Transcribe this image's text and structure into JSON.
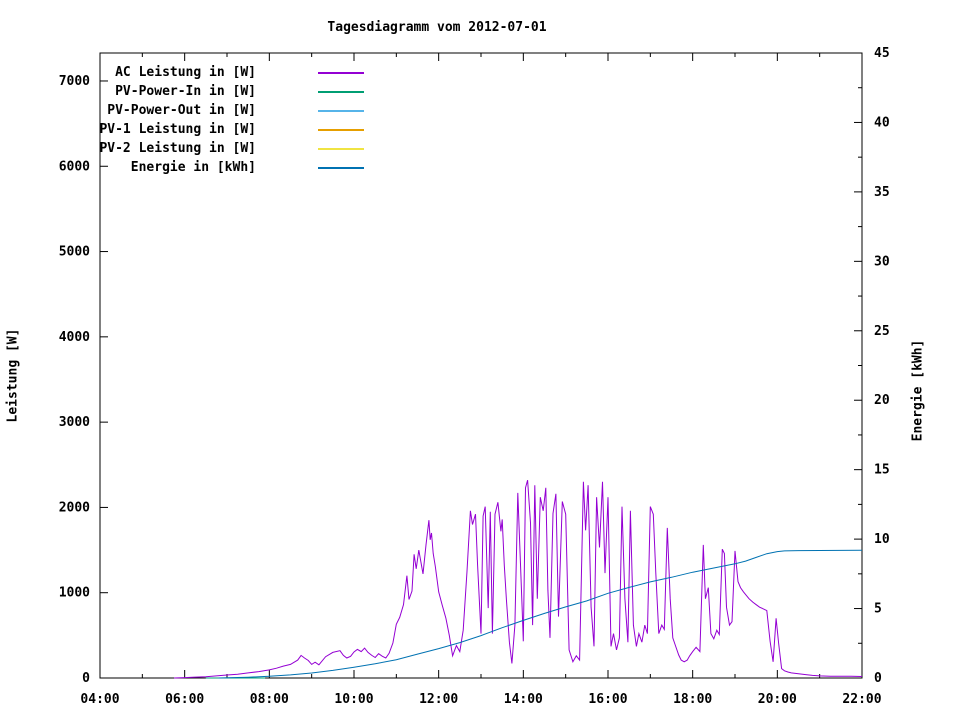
{
  "window": {
    "title": "Tagesdiagramm vom 2012-07-01"
  },
  "chart_data": {
    "type": "line",
    "title": "Tagesdiagramm vom 2012-07-01",
    "xlabel": "",
    "ylabel_left": "Leistung [W]",
    "ylabel_right": "Energie [kWh]",
    "grid": false,
    "legend_position": "top-left-inside",
    "x_axis": {
      "unit": "time",
      "start_hour": 4,
      "end_hour": 22,
      "major_tick_hours": 2,
      "minor_tick_hours": 1,
      "tick_labels": [
        "04:00",
        "06:00",
        "08:00",
        "10:00",
        "12:00",
        "14:00",
        "16:00",
        "18:00",
        "20:00",
        "22:00"
      ]
    },
    "y_left_axis": {
      "label": "Leistung [W]",
      "min": 0,
      "max": 7328,
      "major_tick": 1000,
      "tick_labels": [
        "0",
        "1000",
        "2000",
        "3000",
        "4000",
        "5000",
        "6000",
        "7000"
      ]
    },
    "y_right_axis": {
      "label": "Energie [kWh]",
      "min": 0,
      "max": 45,
      "major_tick": 5,
      "minor_tick": 2.5,
      "tick_labels": [
        "0",
        "5",
        "10",
        "15",
        "20",
        "25",
        "30",
        "35",
        "40",
        "45"
      ]
    },
    "series": [
      {
        "name": "AC Leistung in [W]",
        "color": "#9400d3",
        "axis": "left",
        "points": [
          [
            5.75,
            0
          ],
          [
            6.0,
            5
          ],
          [
            6.25,
            10
          ],
          [
            6.5,
            15
          ],
          [
            6.75,
            25
          ],
          [
            7.0,
            35
          ],
          [
            7.25,
            45
          ],
          [
            7.5,
            60
          ],
          [
            7.75,
            75
          ],
          [
            8.0,
            95
          ],
          [
            8.17,
            115
          ],
          [
            8.33,
            140
          ],
          [
            8.5,
            160
          ],
          [
            8.67,
            210
          ],
          [
            8.75,
            265
          ],
          [
            8.83,
            235
          ],
          [
            8.92,
            205
          ],
          [
            9.0,
            160
          ],
          [
            9.08,
            185
          ],
          [
            9.17,
            155
          ],
          [
            9.33,
            250
          ],
          [
            9.5,
            300
          ],
          [
            9.67,
            320
          ],
          [
            9.75,
            265
          ],
          [
            9.83,
            235
          ],
          [
            9.92,
            255
          ],
          [
            10.0,
            305
          ],
          [
            10.08,
            335
          ],
          [
            10.17,
            310
          ],
          [
            10.25,
            350
          ],
          [
            10.33,
            300
          ],
          [
            10.42,
            265
          ],
          [
            10.5,
            240
          ],
          [
            10.58,
            285
          ],
          [
            10.67,
            255
          ],
          [
            10.75,
            235
          ],
          [
            10.83,
            290
          ],
          [
            10.92,
            410
          ],
          [
            11.0,
            630
          ],
          [
            11.08,
            710
          ],
          [
            11.17,
            860
          ],
          [
            11.25,
            1200
          ],
          [
            11.3,
            920
          ],
          [
            11.37,
            1020
          ],
          [
            11.42,
            1450
          ],
          [
            11.47,
            1280
          ],
          [
            11.53,
            1500
          ],
          [
            11.58,
            1360
          ],
          [
            11.63,
            1220
          ],
          [
            11.7,
            1560
          ],
          [
            11.77,
            1850
          ],
          [
            11.8,
            1620
          ],
          [
            11.83,
            1700
          ],
          [
            11.87,
            1460
          ],
          [
            11.92,
            1310
          ],
          [
            12.0,
            1010
          ],
          [
            12.08,
            860
          ],
          [
            12.17,
            700
          ],
          [
            12.25,
            500
          ],
          [
            12.33,
            260
          ],
          [
            12.42,
            380
          ],
          [
            12.5,
            310
          ],
          [
            12.58,
            560
          ],
          [
            12.67,
            1250
          ],
          [
            12.75,
            1960
          ],
          [
            12.8,
            1800
          ],
          [
            12.87,
            1920
          ],
          [
            12.92,
            1320
          ],
          [
            13.0,
            520
          ],
          [
            13.05,
            1900
          ],
          [
            13.1,
            2010
          ],
          [
            13.17,
            820
          ],
          [
            13.22,
            1950
          ],
          [
            13.27,
            520
          ],
          [
            13.33,
            1920
          ],
          [
            13.4,
            2060
          ],
          [
            13.47,
            1720
          ],
          [
            13.5,
            1860
          ],
          [
            13.55,
            1320
          ],
          [
            13.6,
            920
          ],
          [
            13.67,
            420
          ],
          [
            13.73,
            170
          ],
          [
            13.8,
            620
          ],
          [
            13.87,
            2170
          ],
          [
            13.92,
            1520
          ],
          [
            13.97,
            830
          ],
          [
            14.0,
            430
          ],
          [
            14.05,
            2230
          ],
          [
            14.1,
            2320
          ],
          [
            14.17,
            1820
          ],
          [
            14.22,
            620
          ],
          [
            14.27,
            2260
          ],
          [
            14.33,
            930
          ],
          [
            14.4,
            2120
          ],
          [
            14.47,
            1960
          ],
          [
            14.53,
            2230
          ],
          [
            14.58,
            1030
          ],
          [
            14.63,
            470
          ],
          [
            14.7,
            1930
          ],
          [
            14.77,
            2160
          ],
          [
            14.83,
            720
          ],
          [
            14.92,
            2070
          ],
          [
            15.0,
            1920
          ],
          [
            15.08,
            330
          ],
          [
            15.17,
            190
          ],
          [
            15.25,
            260
          ],
          [
            15.33,
            210
          ],
          [
            15.42,
            2300
          ],
          [
            15.47,
            1730
          ],
          [
            15.53,
            2260
          ],
          [
            15.6,
            830
          ],
          [
            15.67,
            370
          ],
          [
            15.73,
            2120
          ],
          [
            15.8,
            1530
          ],
          [
            15.87,
            2300
          ],
          [
            15.93,
            1230
          ],
          [
            16.0,
            2120
          ],
          [
            16.07,
            370
          ],
          [
            16.13,
            520
          ],
          [
            16.2,
            330
          ],
          [
            16.27,
            470
          ],
          [
            16.33,
            2010
          ],
          [
            16.4,
            930
          ],
          [
            16.47,
            420
          ],
          [
            16.53,
            1960
          ],
          [
            16.6,
            620
          ],
          [
            16.67,
            370
          ],
          [
            16.73,
            520
          ],
          [
            16.8,
            420
          ],
          [
            16.87,
            620
          ],
          [
            16.93,
            520
          ],
          [
            17.0,
            2010
          ],
          [
            17.07,
            1920
          ],
          [
            17.13,
            1230
          ],
          [
            17.2,
            520
          ],
          [
            17.27,
            620
          ],
          [
            17.33,
            570
          ],
          [
            17.4,
            1760
          ],
          [
            17.47,
            930
          ],
          [
            17.53,
            470
          ],
          [
            17.6,
            370
          ],
          [
            17.67,
            270
          ],
          [
            17.73,
            210
          ],
          [
            17.8,
            190
          ],
          [
            17.87,
            210
          ],
          [
            17.93,
            260
          ],
          [
            18.0,
            310
          ],
          [
            18.08,
            360
          ],
          [
            18.17,
            310
          ],
          [
            18.25,
            1560
          ],
          [
            18.3,
            930
          ],
          [
            18.37,
            1060
          ],
          [
            18.43,
            520
          ],
          [
            18.5,
            460
          ],
          [
            18.57,
            560
          ],
          [
            18.63,
            510
          ],
          [
            18.7,
            1510
          ],
          [
            18.75,
            1460
          ],
          [
            18.8,
            830
          ],
          [
            18.87,
            620
          ],
          [
            18.93,
            660
          ],
          [
            19.0,
            1490
          ],
          [
            19.07,
            1130
          ],
          [
            19.13,
            1060
          ],
          [
            19.2,
            1010
          ],
          [
            19.33,
            930
          ],
          [
            19.42,
            890
          ],
          [
            19.5,
            860
          ],
          [
            19.58,
            830
          ],
          [
            19.67,
            810
          ],
          [
            19.75,
            790
          ],
          [
            19.83,
            430
          ],
          [
            19.9,
            190
          ],
          [
            19.97,
            700
          ],
          [
            20.03,
            410
          ],
          [
            20.1,
            110
          ],
          [
            20.17,
            85
          ],
          [
            20.25,
            70
          ],
          [
            20.33,
            60
          ],
          [
            20.5,
            50
          ],
          [
            20.67,
            40
          ],
          [
            20.83,
            30
          ],
          [
            21.0,
            25
          ],
          [
            21.25,
            20
          ],
          [
            21.5,
            20
          ],
          [
            21.75,
            20
          ],
          [
            22.0,
            18
          ]
        ]
      },
      {
        "name": "PV-Power-In in [W]",
        "color": "#009e73",
        "axis": "left",
        "points": [
          [
            6.5,
            0
          ],
          [
            7.9,
            0
          ]
        ]
      },
      {
        "name": "PV-Power-Out in [W]",
        "color": "#56b4e9",
        "axis": "left",
        "points": []
      },
      {
        "name": "PV-1 Leistung in [W]",
        "color": "#e69f00",
        "axis": "left",
        "points": []
      },
      {
        "name": "PV-2 Leistung in [W]",
        "color": "#f0e442",
        "axis": "left",
        "points": []
      },
      {
        "name": "Energie in [kWh]",
        "color": "#0072b2",
        "axis": "right",
        "points": [
          [
            6.8,
            0
          ],
          [
            7.0,
            0.02
          ],
          [
            7.5,
            0.06
          ],
          [
            8.0,
            0.12
          ],
          [
            8.5,
            0.22
          ],
          [
            9.0,
            0.36
          ],
          [
            9.5,
            0.55
          ],
          [
            10.0,
            0.78
          ],
          [
            10.5,
            1.02
          ],
          [
            11.0,
            1.32
          ],
          [
            11.5,
            1.72
          ],
          [
            12.0,
            2.12
          ],
          [
            12.5,
            2.55
          ],
          [
            13.0,
            3.05
          ],
          [
            13.5,
            3.62
          ],
          [
            14.0,
            4.15
          ],
          [
            14.5,
            4.65
          ],
          [
            15.0,
            5.12
          ],
          [
            15.5,
            5.55
          ],
          [
            16.0,
            6.1
          ],
          [
            16.5,
            6.52
          ],
          [
            17.0,
            6.92
          ],
          [
            17.5,
            7.25
          ],
          [
            18.0,
            7.62
          ],
          [
            18.5,
            7.92
          ],
          [
            19.0,
            8.22
          ],
          [
            19.25,
            8.42
          ],
          [
            19.5,
            8.68
          ],
          [
            19.75,
            8.95
          ],
          [
            20.0,
            9.1
          ],
          [
            20.17,
            9.15
          ],
          [
            20.5,
            9.17
          ],
          [
            21.0,
            9.18
          ],
          [
            21.5,
            9.19
          ],
          [
            22.0,
            9.2
          ]
        ]
      }
    ]
  }
}
